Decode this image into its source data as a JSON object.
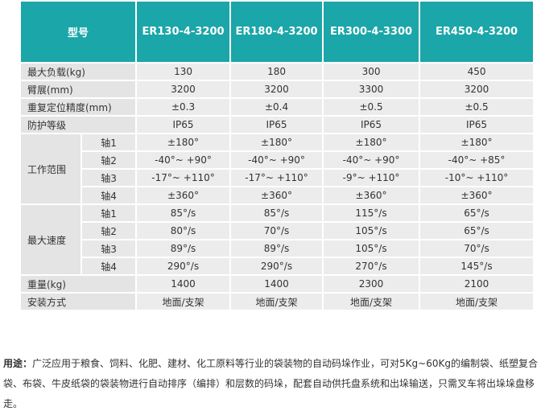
{
  "table": {
    "header": [
      "型号",
      "ER130-4-3200",
      "ER180-4-3200",
      "ER300-4-3300",
      "ER450-4-3200"
    ],
    "rows": [
      {
        "label": "最大负载(kg)",
        "values": [
          "130",
          "180",
          "300",
          "450"
        ]
      },
      {
        "label": "臂展(mm)",
        "values": [
          "3200",
          "3200",
          "3300",
          "3200"
        ]
      },
      {
        "label": "重复定位精度(mm)",
        "values": [
          "±0.3",
          "±0.4",
          "±0.5",
          "±0.5"
        ]
      },
      {
        "label": "防护等级",
        "values": [
          "IP65",
          "IP65",
          "IP65",
          "IP65"
        ]
      },
      {
        "label": "工作范围",
        "axes": [
          {
            "axis": "轴1",
            "values": [
              "±180°",
              "±180°",
              "±180°",
              "±180°"
            ]
          },
          {
            "axis": "轴2",
            "values": [
              "-40°~ +90°",
              "-40°~ +90°",
              "-40°~ +90°",
              "-40°~ +85°"
            ]
          },
          {
            "axis": "轴3",
            "values": [
              "-17°~ +110°",
              "-17°~ +110°",
              "-9°~ +110°",
              "-10°~ +110°"
            ]
          },
          {
            "axis": "轴4",
            "values": [
              "±360°",
              "±360°",
              "±360°",
              "±360°"
            ]
          }
        ]
      },
      {
        "label": "最大速度",
        "axes": [
          {
            "axis": "轴1",
            "values": [
              "85°/s",
              "85°/s",
              "115°/s",
              "65°/s"
            ]
          },
          {
            "axis": "轴2",
            "values": [
              "80°/s",
              "70°/s",
              "105°/s",
              "65°/s"
            ]
          },
          {
            "axis": "轴3",
            "values": [
              "89°/s",
              "89°/s",
              "105°/s",
              "70°/s"
            ]
          },
          {
            "axis": "轴4",
            "values": [
              "290°/s",
              "290°/s",
              "270°/s",
              "145°/s"
            ]
          }
        ]
      },
      {
        "label": "重量(kg)",
        "values": [
          "1400",
          "1400",
          "2300",
          "2100"
        ]
      },
      {
        "label": "安装方式",
        "values": [
          "地面/支架",
          "地面/支架",
          "地面/支架",
          "地面/支架"
        ]
      }
    ]
  },
  "note": {
    "label": "用途：",
    "text": "广泛应用于粮食、饲料、化肥、建材、化工原料等行业的袋装物的自动码垛作业，可对5Kg~60Kg的编制袋、纸塑复合袋、布袋、牛皮纸袋的袋装物进行自动排序（编排）和层数的码垛，配套自动供托盘系统和出垛输送，只需叉车将出垛垛盘移走。"
  }
}
